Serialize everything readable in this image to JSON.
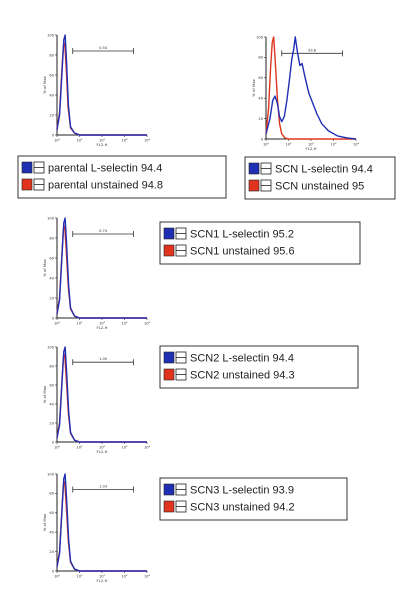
{
  "colors": {
    "blue": "#1f2fb4",
    "red": "#e0341e"
  },
  "chart_data": [
    {
      "type": "line",
      "xlabel": "FL2-H",
      "ylabel": "% of Max",
      "xscale": "log",
      "xlim": [
        1,
        10000
      ],
      "ylim": [
        0,
        100
      ],
      "x_ticks": [
        "10⁰",
        "10¹",
        "10²",
        "10³",
        "10⁴"
      ],
      "y_ticks": [
        "0",
        "20",
        "40",
        "60",
        "80",
        "100"
      ],
      "gate": {
        "label": "0.54",
        "x_range": [
          5,
          2500
        ],
        "y": 84
      },
      "series": [
        {
          "name": "parental L-selectin",
          "value": "94.4",
          "color": "#1f2fb4",
          "points": [
            [
              1,
              5
            ],
            [
              1.3,
              20
            ],
            [
              1.6,
              55
            ],
            [
              2.0,
              95
            ],
            [
              2.3,
              100
            ],
            [
              2.7,
              70
            ],
            [
              3.2,
              30
            ],
            [
              4,
              8
            ],
            [
              6,
              2
            ],
            [
              10,
              0
            ],
            [
              10000,
              0
            ]
          ]
        },
        {
          "name": "parental unstained",
          "value": "94.8",
          "color": "#e0341e",
          "points": [
            [
              1,
              6
            ],
            [
              1.3,
              22
            ],
            [
              1.6,
              60
            ],
            [
              1.9,
              88
            ],
            [
              2.2,
              92
            ],
            [
              2.6,
              65
            ],
            [
              3.1,
              28
            ],
            [
              4,
              7
            ],
            [
              6,
              2
            ],
            [
              10,
              0
            ],
            [
              10000,
              0
            ]
          ]
        }
      ]
    },
    {
      "type": "line",
      "xlabel": "FL2-H",
      "ylabel": "% of Max",
      "xscale": "log",
      "xlim": [
        1,
        10000
      ],
      "ylim": [
        0,
        100
      ],
      "x_ticks": [
        "10⁰",
        "10¹",
        "10²",
        "10³",
        "10⁴"
      ],
      "y_ticks": [
        "0",
        "20",
        "40",
        "60",
        "80",
        "100"
      ],
      "gate": {
        "label": "93.8",
        "x_range": [
          5,
          2500
        ],
        "y": 84
      },
      "series": [
        {
          "name": "SCN L-selectin",
          "value": "94.4",
          "color": "#1f2fb4",
          "points": [
            [
              1,
              5
            ],
            [
              1.5,
              20
            ],
            [
              2,
              38
            ],
            [
              2.5,
              42
            ],
            [
              3.2,
              35
            ],
            [
              4,
              22
            ],
            [
              5,
              17
            ],
            [
              6.5,
              22
            ],
            [
              8.5,
              38
            ],
            [
              11,
              58
            ],
            [
              14,
              78
            ],
            [
              17,
              88
            ],
            [
              20,
              100
            ],
            [
              25,
              85
            ],
            [
              32,
              72
            ],
            [
              40,
              74
            ],
            [
              55,
              60
            ],
            [
              80,
              45
            ],
            [
              120,
              35
            ],
            [
              180,
              25
            ],
            [
              300,
              15
            ],
            [
              600,
              8
            ],
            [
              1500,
              3
            ],
            [
              4000,
              1
            ],
            [
              10000,
              0
            ]
          ]
        },
        {
          "name": "SCN unstained",
          "value": "95",
          "color": "#e0341e",
          "points": [
            [
              1,
              5
            ],
            [
              1.3,
              30
            ],
            [
              1.6,
              70
            ],
            [
              1.9,
              95
            ],
            [
              2.2,
              100
            ],
            [
              2.6,
              75
            ],
            [
              3.2,
              40
            ],
            [
              4,
              15
            ],
            [
              5,
              5
            ],
            [
              7,
              1
            ],
            [
              10,
              0
            ],
            [
              10000,
              0
            ]
          ]
        }
      ]
    },
    {
      "type": "line",
      "xlabel": "FL2-H",
      "ylabel": "% of Max",
      "xscale": "log",
      "xlim": [
        1,
        10000
      ],
      "ylim": [
        0,
        100
      ],
      "x_ticks": [
        "10⁰",
        "10¹",
        "10²",
        "10³",
        "10⁴"
      ],
      "y_ticks": [
        "0",
        "20",
        "40",
        "60",
        "80",
        "100"
      ],
      "gate": {
        "label": "0.74",
        "x_range": [
          5,
          2500
        ],
        "y": 84
      },
      "series": [
        {
          "name": "SCN1 L-selectin",
          "value": "95.2",
          "color": "#1f2fb4",
          "points": [
            [
              1,
              4
            ],
            [
              1.3,
              18
            ],
            [
              1.6,
              55
            ],
            [
              2.0,
              95
            ],
            [
              2.3,
              100
            ],
            [
              2.7,
              72
            ],
            [
              3.3,
              32
            ],
            [
              4,
              10
            ],
            [
              6,
              2
            ],
            [
              10,
              0
            ],
            [
              10000,
              0
            ]
          ]
        },
        {
          "name": "SCN1 unstained",
          "value": "95.6",
          "color": "#e0341e",
          "points": [
            [
              1,
              5
            ],
            [
              1.3,
              20
            ],
            [
              1.6,
              58
            ],
            [
              1.9,
              88
            ],
            [
              2.2,
              92
            ],
            [
              2.6,
              66
            ],
            [
              3.2,
              30
            ],
            [
              4,
              9
            ],
            [
              6,
              2
            ],
            [
              10,
              0
            ],
            [
              10000,
              0
            ]
          ]
        }
      ]
    },
    {
      "type": "line",
      "xlabel": "FL2-H",
      "ylabel": "% of Max",
      "xscale": "log",
      "xlim": [
        1,
        10000
      ],
      "ylim": [
        0,
        100
      ],
      "x_ticks": [
        "10⁰",
        "10¹",
        "10²",
        "10³",
        "10⁴"
      ],
      "y_ticks": [
        "0",
        "20",
        "40",
        "60",
        "80",
        "100"
      ],
      "gate": {
        "label": "1.00",
        "x_range": [
          5,
          2500
        ],
        "y": 84
      },
      "series": [
        {
          "name": "SCN2 L-selectin",
          "value": "94.4",
          "color": "#1f2fb4",
          "points": [
            [
              1,
              4
            ],
            [
              1.3,
              18
            ],
            [
              1.6,
              55
            ],
            [
              2.0,
              95
            ],
            [
              2.3,
              100
            ],
            [
              2.7,
              72
            ],
            [
              3.3,
              32
            ],
            [
              4,
              10
            ],
            [
              6,
              2
            ],
            [
              10,
              0
            ],
            [
              10000,
              0
            ]
          ]
        },
        {
          "name": "SCN2 unstained",
          "value": "94.3",
          "color": "#e0341e",
          "points": [
            [
              1,
              5
            ],
            [
              1.3,
              20
            ],
            [
              1.6,
              58
            ],
            [
              1.9,
              88
            ],
            [
              2.2,
              92
            ],
            [
              2.6,
              66
            ],
            [
              3.2,
              30
            ],
            [
              4,
              9
            ],
            [
              6,
              2
            ],
            [
              10,
              0
            ],
            [
              10000,
              0
            ]
          ]
        }
      ]
    },
    {
      "type": "line",
      "xlabel": "FL2-H",
      "ylabel": "% of Max",
      "xscale": "log",
      "xlim": [
        1,
        10000
      ],
      "ylim": [
        0,
        100
      ],
      "x_ticks": [
        "10⁰",
        "10¹",
        "10²",
        "10³",
        "10⁴"
      ],
      "y_ticks": [
        "0",
        "20",
        "40",
        "60",
        "80",
        "100"
      ],
      "gate": {
        "label": "1.03",
        "x_range": [
          5,
          2500
        ],
        "y": 84
      },
      "series": [
        {
          "name": "SCN3 L-selectin",
          "value": "93.9",
          "color": "#1f2fb4",
          "points": [
            [
              1,
              4
            ],
            [
              1.3,
              18
            ],
            [
              1.6,
              55
            ],
            [
              2.0,
              95
            ],
            [
              2.3,
              100
            ],
            [
              2.7,
              72
            ],
            [
              3.3,
              32
            ],
            [
              4,
              10
            ],
            [
              6,
              2
            ],
            [
              10,
              0
            ],
            [
              10000,
              0
            ]
          ]
        },
        {
          "name": "SCN3 unstained",
          "value": "94.2",
          "color": "#e0341e",
          "points": [
            [
              1,
              5
            ],
            [
              1.3,
              20
            ],
            [
              1.6,
              58
            ],
            [
              1.9,
              88
            ],
            [
              2.2,
              92
            ],
            [
              2.6,
              66
            ],
            [
              3.2,
              30
            ],
            [
              4,
              9
            ],
            [
              6,
              2
            ],
            [
              10,
              0
            ],
            [
              10000,
              0
            ]
          ]
        }
      ]
    }
  ]
}
